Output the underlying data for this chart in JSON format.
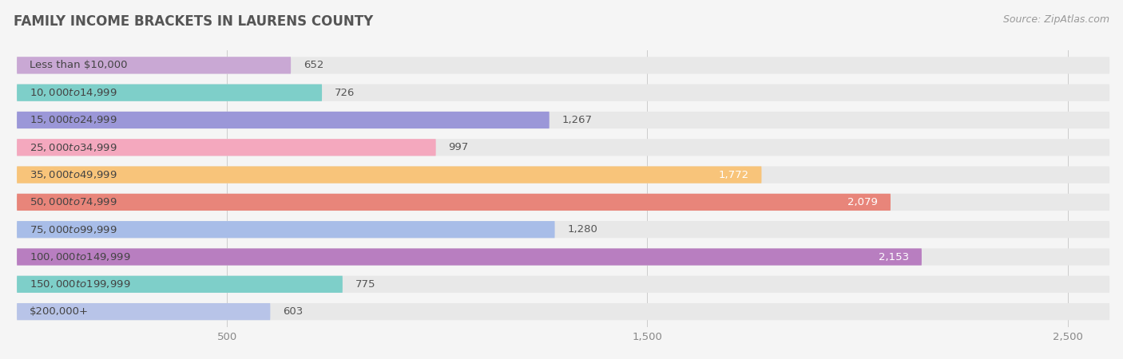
{
  "title": "FAMILY INCOME BRACKETS IN LAURENS COUNTY",
  "source": "Source: ZipAtlas.com",
  "categories": [
    "Less than $10,000",
    "$10,000 to $14,999",
    "$15,000 to $24,999",
    "$25,000 to $34,999",
    "$35,000 to $49,999",
    "$50,000 to $74,999",
    "$75,000 to $99,999",
    "$100,000 to $149,999",
    "$150,000 to $199,999",
    "$200,000+"
  ],
  "values": [
    652,
    726,
    1267,
    997,
    1772,
    2079,
    1280,
    2153,
    775,
    603
  ],
  "bar_colors": [
    "#c9a8d4",
    "#7ecfc9",
    "#9b97d8",
    "#f4a8be",
    "#f8c47a",
    "#e8857a",
    "#a8bde8",
    "#b87ec0",
    "#7ecfc9",
    "#b8c4e8"
  ],
  "background_color": "#f5f5f5",
  "bar_background_color": "#e8e8e8",
  "xlim": [
    0,
    2600
  ],
  "xticks": [
    500,
    1500,
    2500
  ],
  "xtick_labels": [
    "500",
    "1,500",
    "2,500"
  ],
  "title_fontsize": 12,
  "label_fontsize": 9.5,
  "value_fontsize": 9.5,
  "source_fontsize": 9,
  "inside_label_values": [
    1772,
    2079,
    2153
  ],
  "inside_label_color": "white",
  "outside_label_color": "#555555",
  "title_color": "#555555",
  "label_color": "#444444",
  "grid_color": "#cccccc",
  "tick_color": "#888888"
}
